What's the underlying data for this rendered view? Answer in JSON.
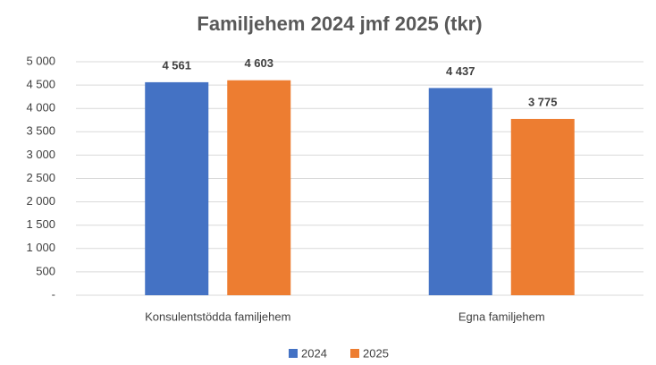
{
  "chart_data": {
    "type": "bar",
    "title": "Familjehem 2024 jmf 2025 (tkr)",
    "categories": [
      "Konsulentstödda familjehem",
      "Egna familjehem"
    ],
    "series": [
      {
        "name": "2024",
        "color": "#4472c4",
        "values": [
          4561,
          4437
        ],
        "value_labels": [
          "4 561",
          "4 437"
        ]
      },
      {
        "name": "2025",
        "color": "#ed7d31",
        "values": [
          4603,
          3775
        ],
        "value_labels": [
          "4 603",
          "3 775"
        ]
      }
    ],
    "ylim": [
      0,
      5000
    ],
    "yticks": [
      {
        "value": 0,
        "label": "-"
      },
      500,
      {
        "value": 1000,
        "label": "1 000"
      },
      {
        "value": 1500,
        "label": "1 500"
      },
      {
        "value": 2000,
        "label": "2 000"
      },
      {
        "value": 2500,
        "label": "2 500"
      },
      {
        "value": 3000,
        "label": "3 000"
      },
      {
        "value": 3500,
        "label": "3 500"
      },
      {
        "value": 4000,
        "label": "4 000"
      },
      {
        "value": 4500,
        "label": "4 500"
      },
      {
        "value": 5000,
        "label": "5 000"
      }
    ],
    "grid": true,
    "legend": "bottom"
  }
}
